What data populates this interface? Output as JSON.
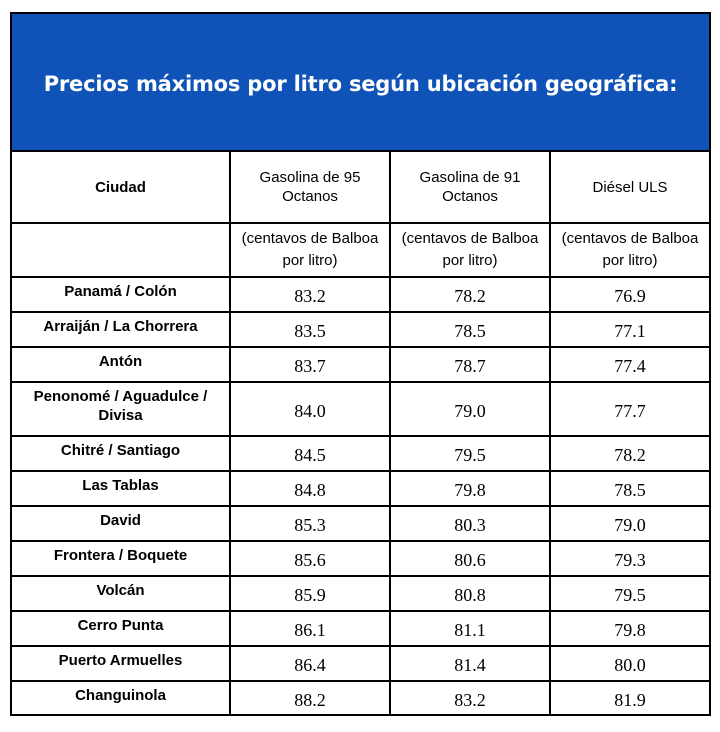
{
  "title": "Precios máximos por litro según ubicación geográfica:",
  "columns": {
    "city": "Ciudad",
    "g95": "Gasolina de 95 Octanos",
    "g91": "Gasolina de 91 Octanos",
    "diesel": "Diésel ULS"
  },
  "units": [
    "(centavos de Balboa por litro)",
    "(centavos de Balboa por litro)",
    "(centavos de Balboa por litro)"
  ],
  "rows": [
    {
      "city": "Panamá / Colón",
      "g95": "83.2",
      "g91": "78.2",
      "diesel": "76.9"
    },
    {
      "city": "Arraiján / La Chorrera",
      "g95": "83.5",
      "g91": "78.5",
      "diesel": "77.1"
    },
    {
      "city": "Antón",
      "g95": "83.7",
      "g91": "78.7",
      "diesel": "77.4"
    },
    {
      "city": "Penonomé / Aguadulce / Divisa",
      "g95": "84.0",
      "g91": "79.0",
      "diesel": "77.7"
    },
    {
      "city": "Chitré / Santiago",
      "g95": "84.5",
      "g91": "79.5",
      "diesel": "78.2"
    },
    {
      "city": "Las Tablas",
      "g95": "84.8",
      "g91": "79.8",
      "diesel": "78.5"
    },
    {
      "city": "David",
      "g95": "85.3",
      "g91": "80.3",
      "diesel": "79.0"
    },
    {
      "city": "Frontera / Boquete",
      "g95": "85.6",
      "g91": "80.6",
      "diesel": "79.3"
    },
    {
      "city": "Volcán",
      "g95": "85.9",
      "g91": "80.8",
      "diesel": "79.5"
    },
    {
      "city": "Cerro Punta",
      "g95": "86.1",
      "g91": "81.1",
      "diesel": "79.8"
    },
    {
      "city": "Puerto Armuelles",
      "g95": "86.4",
      "g91": "81.4",
      "diesel": "80.0"
    },
    {
      "city": "Changuinola",
      "g95": "88.2",
      "g91": "83.2",
      "diesel": "81.9"
    }
  ]
}
